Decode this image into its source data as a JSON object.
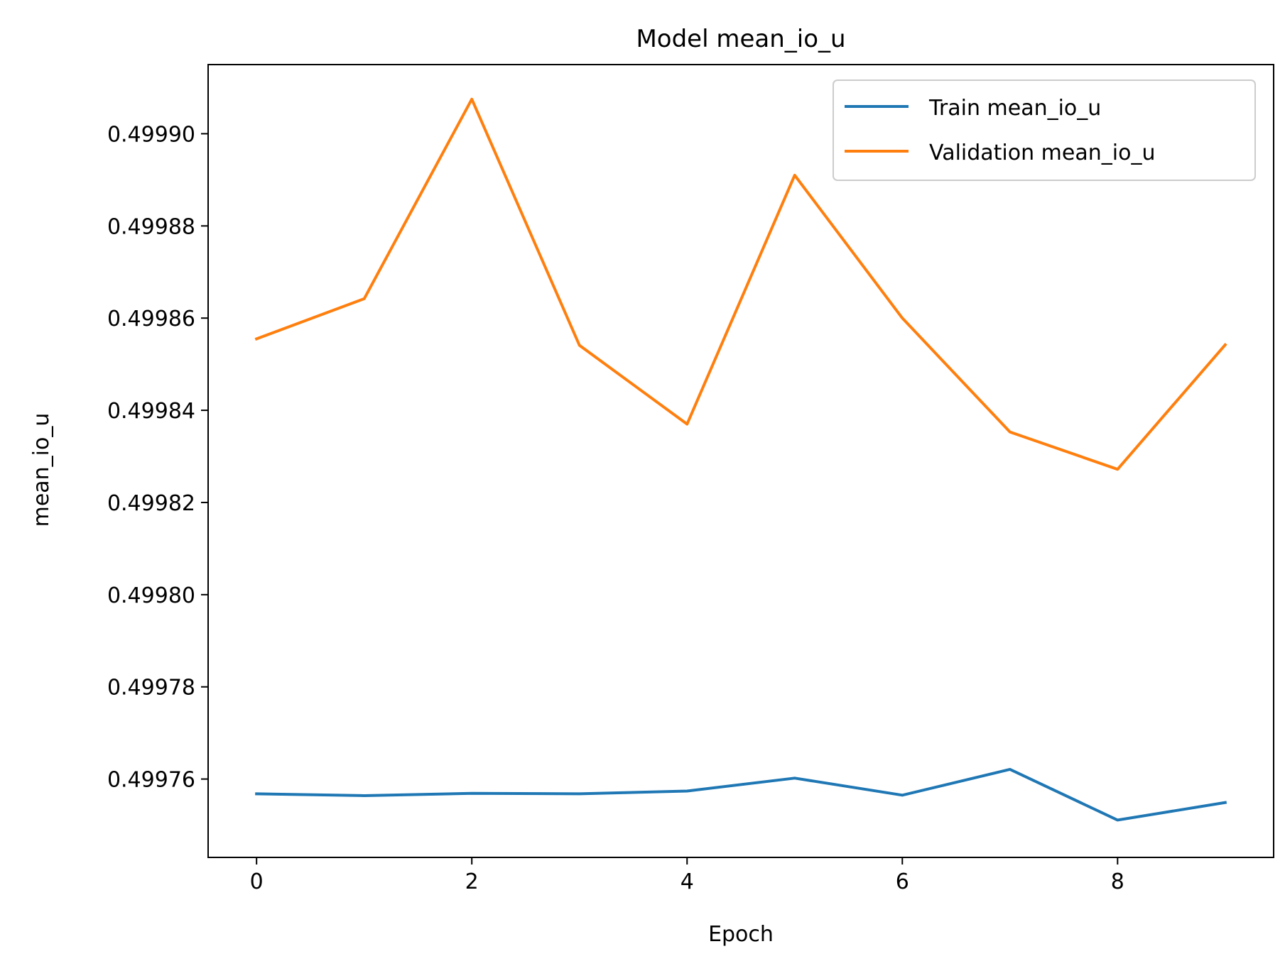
{
  "chart_data": {
    "type": "line",
    "title": "Model mean_io_u",
    "xlabel": "Epoch",
    "ylabel": "mean_io_u",
    "x": [
      0,
      1,
      2,
      3,
      4,
      5,
      6,
      7,
      8,
      9
    ],
    "xlim": [
      -0.45,
      9.45
    ],
    "ylim": [
      0.499743,
      0.499915
    ],
    "x_ticks": [
      0,
      2,
      4,
      6,
      8
    ],
    "x_tick_labels": [
      "0",
      "2",
      "4",
      "6",
      "8"
    ],
    "y_ticks": [
      0.49976,
      0.49978,
      0.4998,
      0.49982,
      0.49984,
      0.49986,
      0.49988,
      0.4999
    ],
    "y_tick_labels": [
      "0.49976",
      "0.49978",
      "0.49980",
      "0.49982",
      "0.49984",
      "0.49986",
      "0.49988",
      "0.49990"
    ],
    "grid": false,
    "legend_position": "top-right",
    "series": [
      {
        "name": "Train mean_io_u",
        "color": "#1f77b4",
        "values": [
          0.4997568,
          0.4997564,
          0.4997569,
          0.4997568,
          0.4997574,
          0.4997602,
          0.4997565,
          0.4997621,
          0.4997511,
          0.4997549
        ]
      },
      {
        "name": "Validation mean_io_u",
        "color": "#ff7f0e",
        "values": [
          0.4998555,
          0.4998642,
          0.4999075,
          0.4998541,
          0.499837,
          0.499891,
          0.49986,
          0.4998353,
          0.4998272,
          0.4998542
        ]
      }
    ]
  }
}
